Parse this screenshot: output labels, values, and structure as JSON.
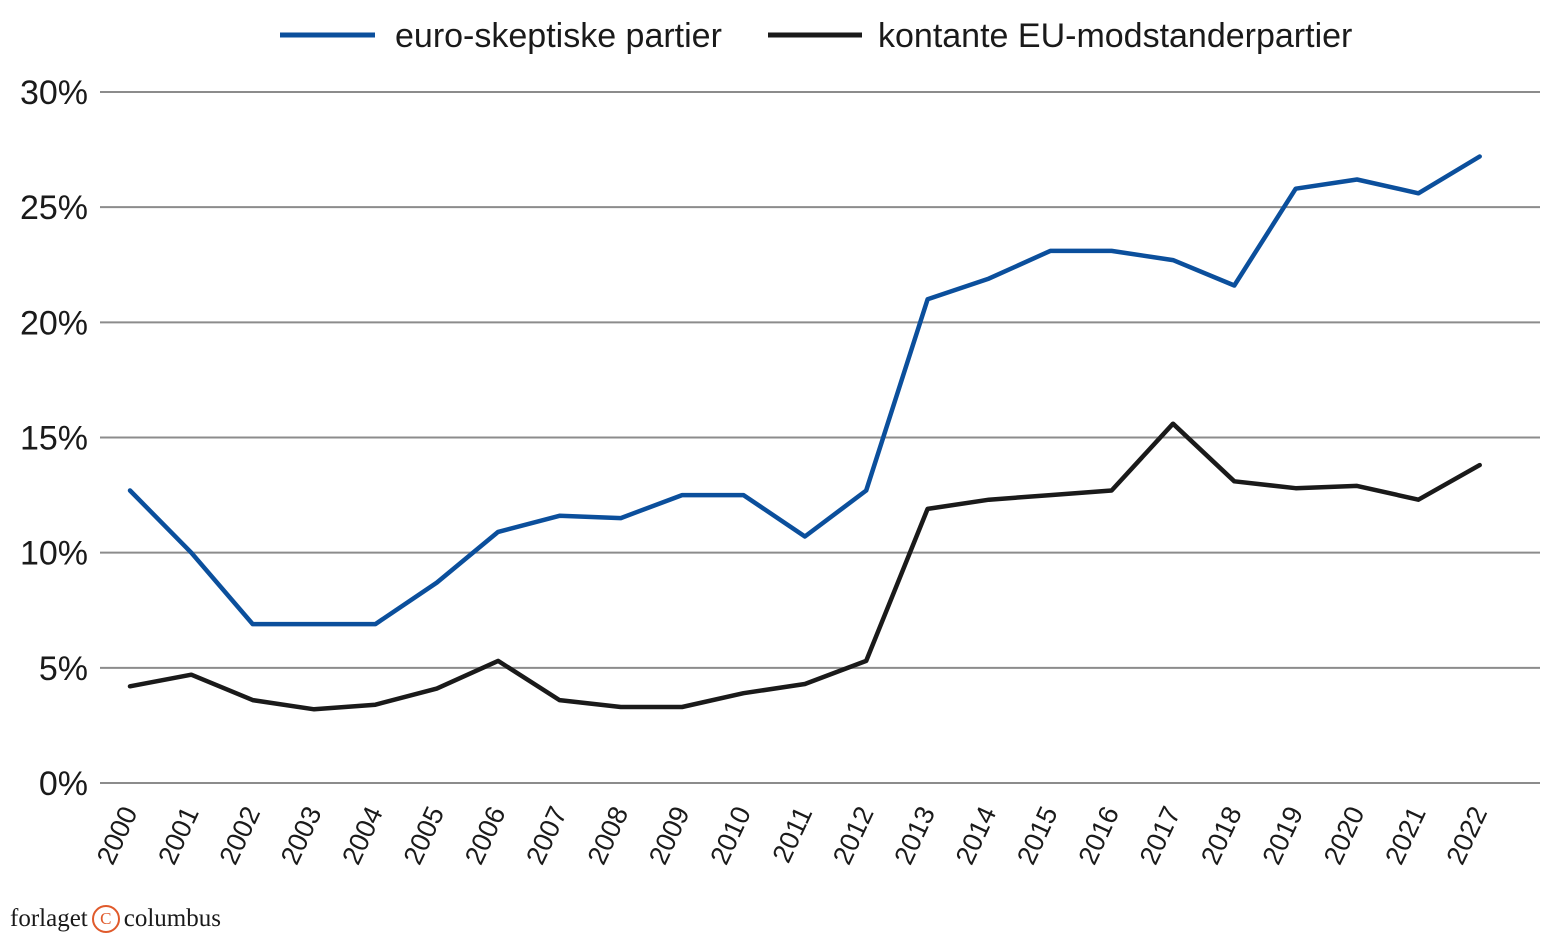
{
  "chart_data": {
    "type": "line",
    "title": "",
    "xlabel": "",
    "ylabel": "",
    "x": [
      2000,
      2001,
      2002,
      2003,
      2004,
      2005,
      2006,
      2007,
      2008,
      2009,
      2010,
      2011,
      2012,
      2013,
      2014,
      2015,
      2016,
      2017,
      2018,
      2019,
      2020,
      2021,
      2022
    ],
    "x_tick_labels": [
      "2000",
      "2001",
      "2002",
      "2003",
      "2004",
      "2005",
      "2006",
      "2007",
      "2008",
      "2009",
      "2010",
      "2011",
      "2012",
      "2013",
      "2014",
      "2015",
      "2016",
      "2017",
      "2018",
      "2019",
      "2020",
      "2021",
      "2022"
    ],
    "ylim": [
      0,
      30
    ],
    "y_ticks": [
      0,
      5,
      10,
      15,
      20,
      25,
      30
    ],
    "y_tick_labels": [
      "0%",
      "5%",
      "10%",
      "15%",
      "20%",
      "25%",
      "30%"
    ],
    "grid": true,
    "legend_position": "top-center",
    "series": [
      {
        "name": "euro-skeptiske partier",
        "color": "#0b4f9c",
        "values": [
          12.7,
          10.0,
          6.9,
          6.9,
          6.9,
          8.7,
          10.9,
          11.6,
          11.5,
          12.5,
          12.5,
          10.7,
          12.7,
          21.0,
          21.9,
          23.1,
          23.1,
          22.7,
          21.6,
          25.8,
          26.2,
          25.6,
          27.2
        ]
      },
      {
        "name": "kontante EU-modstanderpartier",
        "color": "#1a1a1a",
        "values": [
          4.2,
          4.7,
          3.6,
          3.2,
          3.4,
          4.1,
          5.3,
          3.6,
          3.3,
          3.3,
          3.9,
          4.3,
          5.3,
          11.9,
          12.3,
          12.5,
          12.7,
          15.6,
          13.1,
          12.8,
          12.9,
          12.3,
          13.8
        ]
      }
    ]
  },
  "footer": {
    "brand_left": "forlaget",
    "brand_mark": "C",
    "brand_right": "columbus"
  }
}
